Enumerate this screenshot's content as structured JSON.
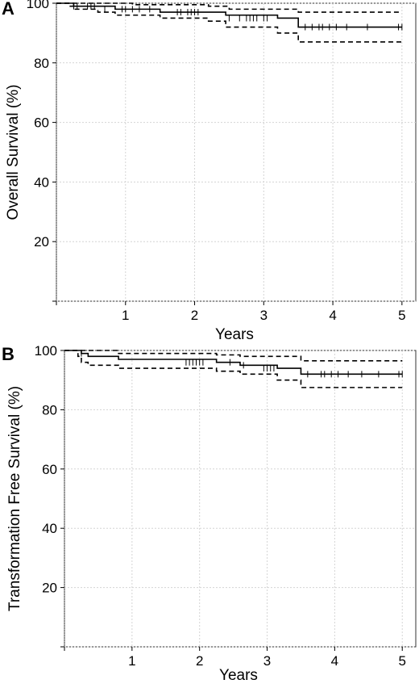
{
  "panels": [
    {
      "letter": "A",
      "chart_data": {
        "type": "line",
        "title": "",
        "xlabel": "Years",
        "ylabel": "Overall Survival (%)",
        "xlim": [
          0,
          5.2
        ],
        "ylim": [
          0,
          100
        ],
        "xticks": [
          1,
          2,
          3,
          4,
          5
        ],
        "yticks": [
          20,
          40,
          60,
          80,
          100
        ],
        "grid": true,
        "series": [
          {
            "role": "estimate",
            "style": "solid",
            "x": [
              0,
              0.2,
              0.25,
              0.6,
              0.85,
              1.3,
              1.5,
              2.2,
              2.45,
              3.2,
              3.5,
              5.0
            ],
            "y": [
              100,
              100,
              99,
              99,
              98,
              98,
              97,
              97,
              96,
              95,
              92,
              92
            ]
          },
          {
            "role": "upper-ci",
            "style": "dashed",
            "x": [
              0,
              0.6,
              1.1,
              2.2,
              2.5,
              3.5,
              5.0
            ],
            "y": [
              100,
              100,
              99.5,
              99,
              98,
              97,
              97
            ]
          },
          {
            "role": "lower-ci",
            "style": "dashed",
            "x": [
              0,
              0.2,
              0.25,
              0.6,
              0.85,
              1.3,
              1.5,
              2.2,
              2.45,
              3.2,
              3.5,
              5.0
            ],
            "y": [
              100,
              99,
              98,
              97,
              96,
              96,
              95,
              94,
              92,
              90,
              87,
              87
            ]
          }
        ],
        "censor_marks": {
          "x": [
            0.25,
            0.3,
            0.45,
            0.5,
            0.55,
            0.7,
            0.95,
            1.0,
            1.1,
            1.2,
            1.35,
            1.75,
            1.8,
            1.9,
            1.95,
            2.0,
            2.05,
            2.5,
            2.65,
            2.75,
            2.8,
            2.85,
            2.9,
            3.0,
            3.05,
            3.6,
            3.7,
            3.8,
            3.85,
            3.95,
            4.05,
            4.2,
            4.5,
            4.95,
            5.0
          ],
          "y": [
            99,
            99,
            99,
            99,
            99,
            98,
            98,
            98,
            98,
            98,
            98,
            97,
            97,
            97,
            97,
            97,
            97,
            95,
            95,
            95,
            95,
            95,
            95,
            95,
            95,
            92,
            92,
            92,
            92,
            92,
            92,
            92,
            92,
            92,
            92
          ]
        }
      }
    },
    {
      "letter": "B",
      "chart_data": {
        "type": "line",
        "title": "",
        "xlabel": "Years",
        "ylabel": "Transformation Free Survival (%)",
        "xlim": [
          0,
          5.2
        ],
        "ylim": [
          0,
          100
        ],
        "xticks": [
          1,
          2,
          3,
          4,
          5
        ],
        "yticks": [
          20,
          40,
          60,
          80,
          100
        ],
        "grid": true,
        "series": [
          {
            "role": "estimate",
            "style": "solid",
            "x": [
              0,
              0.2,
              0.25,
              0.35,
              0.8,
              2.25,
              2.6,
              3.15,
              3.5,
              5.0
            ],
            "y": [
              100,
              100,
              99,
              98,
              97,
              96,
              95,
              94,
              92,
              92
            ]
          },
          {
            "role": "upper-ci",
            "style": "dashed",
            "x": [
              0,
              0.35,
              0.8,
              2.25,
              2.6,
              3.5,
              5.0
            ],
            "y": [
              100,
              100,
              99,
              98.5,
              98,
              96.5,
              96.5
            ]
          },
          {
            "role": "lower-ci",
            "style": "dashed",
            "x": [
              0,
              0.2,
              0.25,
              0.35,
              0.8,
              2.25,
              2.6,
              3.15,
              3.5,
              5.0
            ],
            "y": [
              100,
              98,
              96,
              95,
              94,
              93,
              92,
              90,
              87.5,
              87.5
            ]
          }
        ],
        "censor_marks": {
          "x": [
            0.25,
            1.8,
            1.85,
            1.9,
            1.95,
            2.0,
            2.05,
            2.45,
            2.65,
            2.95,
            3.0,
            3.05,
            3.1,
            3.6,
            3.8,
            3.85,
            3.95,
            4.05,
            4.2,
            4.4,
            4.65,
            4.95,
            5.0
          ],
          "y": [
            99,
            96,
            96,
            96,
            96,
            96,
            96,
            96,
            95,
            94,
            94,
            94,
            94,
            92,
            92,
            92,
            92,
            92,
            92,
            92,
            92,
            92,
            92
          ]
        }
      }
    }
  ]
}
